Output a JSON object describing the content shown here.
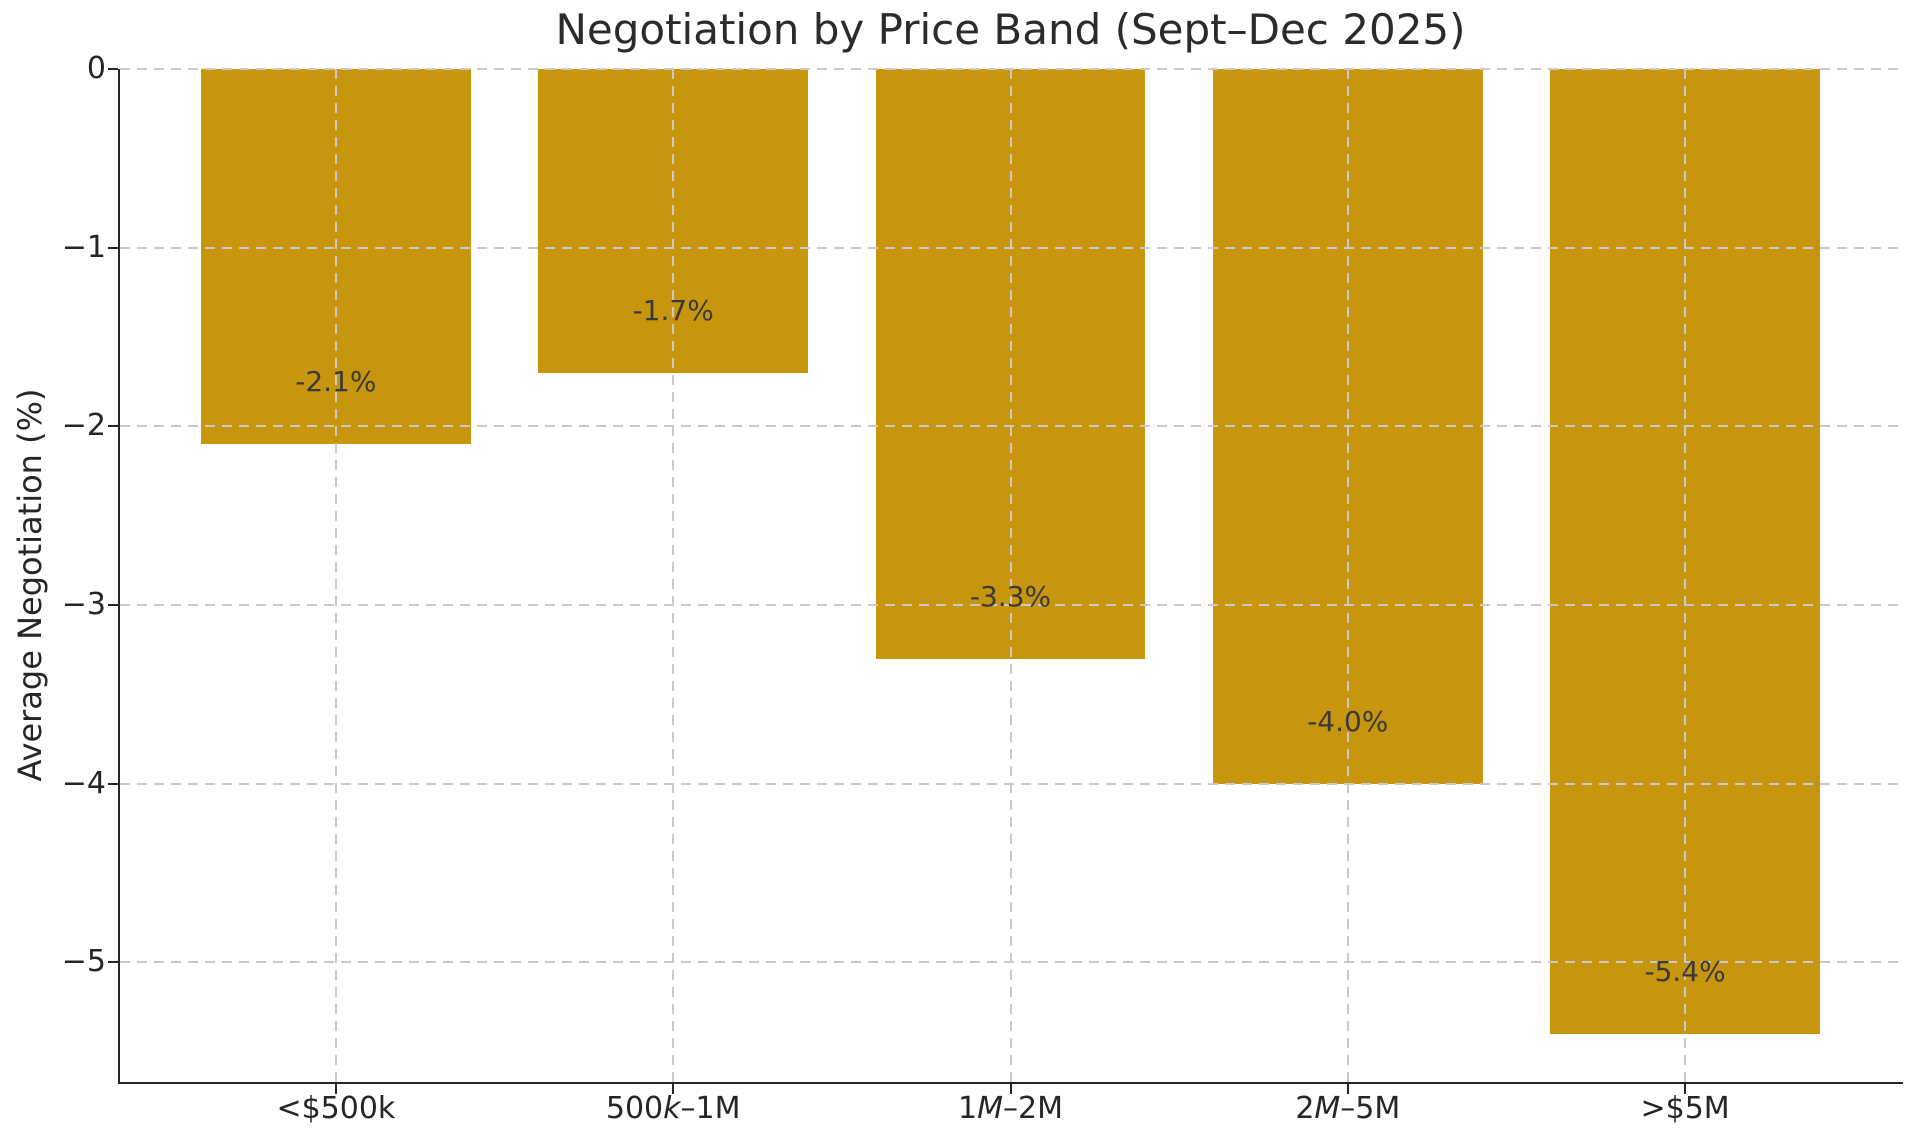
{
  "figure": {
    "background": "#FFFFFF"
  },
  "chart_data": {
    "type": "bar",
    "title": "Negotiation by Price Band (Sept–Dec 2025)",
    "xlabel": "",
    "ylabel": "Average Negotiation (%)",
    "categories": [
      "<$500k",
      "500k–1M",
      "1M–2M",
      "2M–5M",
      ">$5M"
    ],
    "category_segments": [
      [
        {
          "t": "<$500k",
          "i": false
        }
      ],
      [
        {
          "t": "500",
          "i": false
        },
        {
          "t": "k",
          "i": true
        },
        {
          "t": "–1M",
          "i": false
        }
      ],
      [
        {
          "t": "1",
          "i": false
        },
        {
          "t": "M",
          "i": true
        },
        {
          "t": "–2M",
          "i": false
        }
      ],
      [
        {
          "t": "2",
          "i": false
        },
        {
          "t": "M",
          "i": true
        },
        {
          "t": "–5M",
          "i": false
        }
      ],
      [
        {
          "t": ">$5M",
          "i": false
        }
      ]
    ],
    "values": [
      -2.1,
      -1.7,
      -3.3,
      -4.0,
      -5.4
    ],
    "bar_labels": [
      "-2.1%",
      "-1.7%",
      "-3.3%",
      "-4.0%",
      "-5.4%"
    ],
    "ytick_values": [
      0,
      -1,
      -2,
      -3,
      -4,
      -5
    ],
    "ytick_labels": [
      "0",
      "−1",
      "−2",
      "−3",
      "−4",
      "−5"
    ],
    "ylim": [
      -5.67,
      0
    ],
    "xlim": [
      -0.64,
      4.64
    ],
    "bar_width": 0.8,
    "grid": "dashed-both-axes-above-bars",
    "legend": "none",
    "colors": {
      "bar": "#C8960C",
      "bar_label": "#3A3A3A",
      "grid": "#C9C9C9",
      "axis": "#262626",
      "tick_label": "#262626",
      "title": "#2B2B2B"
    }
  }
}
